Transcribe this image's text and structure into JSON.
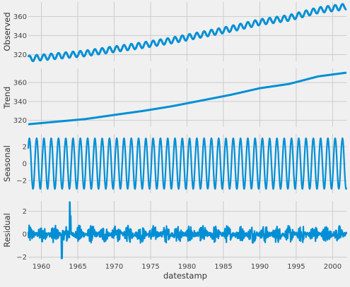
{
  "chart_data": [
    {
      "type": "line",
      "ylabel": "Observed",
      "ylim": [
        313,
        375
      ],
      "yticks": [
        320,
        340,
        360
      ],
      "xlim": [
        1958.2,
        2001.9
      ],
      "grid": true,
      "series": [
        {
          "values_by_year": [
            [
              1958,
              315.7
            ],
            [
              1962,
              318.5
            ],
            [
              1966,
              321.3
            ],
            [
              1970,
              325.7
            ],
            [
              1974,
              330.0
            ],
            [
              1978,
              335.0
            ],
            [
              1982,
              341.0
            ],
            [
              1986,
              347.0
            ],
            [
              1990,
              354.0
            ],
            [
              1994,
              358.5
            ],
            [
              1998,
              366.5
            ],
            [
              2001.9,
              370.5
            ]
          ],
          "seasonal_amplitude": 3.0
        }
      ],
      "color": "#008fd5"
    },
    {
      "type": "line",
      "ylabel": "Trend",
      "ylim": [
        313,
        375
      ],
      "yticks": [
        320,
        340,
        360
      ],
      "xlim": [
        1958.2,
        2001.9
      ],
      "grid": true,
      "series": [
        {
          "values_by_year": [
            [
              1958,
              315.7
            ],
            [
              1962,
              318.5
            ],
            [
              1966,
              321.3
            ],
            [
              1970,
              325.7
            ],
            [
              1974,
              330.0
            ],
            [
              1978,
              335.0
            ],
            [
              1982,
              341.0
            ],
            [
              1986,
              347.0
            ],
            [
              1990,
              354.0
            ],
            [
              1994,
              358.5
            ],
            [
              1998,
              366.5
            ],
            [
              2001.9,
              370.5
            ]
          ]
        }
      ],
      "color": "#008fd5"
    },
    {
      "type": "line",
      "ylabel": "Seasonal",
      "ylim": [
        -3.5,
        3.5
      ],
      "yticks": [
        -2,
        0,
        2
      ],
      "xlim": [
        1958.2,
        2001.9
      ],
      "grid": true,
      "series": [
        {
          "period_years": 1,
          "amplitude": 3.0
        }
      ],
      "color": "#008fd5"
    },
    {
      "type": "line",
      "ylabel": "Residual",
      "xlabel": "datestamp",
      "ylim": [
        -2.2,
        2.9
      ],
      "yticks": [
        -2,
        0,
        2
      ],
      "xlim": [
        1958.2,
        2001.9
      ],
      "xticks": [
        1960,
        1965,
        1970,
        1975,
        1980,
        1985,
        1990,
        1995,
        2000
      ],
      "grid": true,
      "series": [
        {
          "noise_amplitude": 0.8,
          "notable_points": [
            [
              1963.9,
              2.8
            ],
            [
              1964.0,
              1.6
            ],
            [
              1962.8,
              -2.1
            ]
          ]
        }
      ],
      "color": "#008fd5"
    }
  ]
}
